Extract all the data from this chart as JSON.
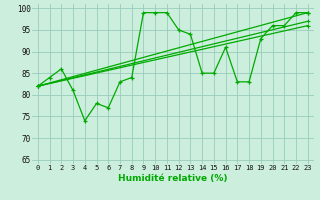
{
  "xlabel": "Humidité relative (%)",
  "bg_color": "#cceedd",
  "grid_color": "#99ccbb",
  "line_color": "#00aa00",
  "xlim": [
    -0.5,
    23.5
  ],
  "ylim": [
    64,
    101
  ],
  "yticks": [
    65,
    70,
    75,
    80,
    85,
    90,
    95,
    100
  ],
  "xticks": [
    0,
    1,
    2,
    3,
    4,
    5,
    6,
    7,
    8,
    9,
    10,
    11,
    12,
    13,
    14,
    15,
    16,
    17,
    18,
    19,
    20,
    21,
    22,
    23
  ],
  "series": [
    {
      "x": [
        0,
        1,
        2,
        3,
        4,
        5,
        6,
        7,
        8,
        9,
        10,
        11,
        12,
        13,
        14,
        15,
        16,
        17,
        18,
        19,
        20,
        21,
        22,
        23
      ],
      "y": [
        82,
        84,
        86,
        81,
        74,
        78,
        77,
        83,
        84,
        99,
        99,
        99,
        95,
        94,
        85,
        85,
        91,
        83,
        83,
        93,
        96,
        96,
        99,
        99
      ]
    },
    {
      "x": [
        0,
        23
      ],
      "y": [
        82,
        99
      ]
    },
    {
      "x": [
        0,
        23
      ],
      "y": [
        82,
        97
      ]
    },
    {
      "x": [
        0,
        23
      ],
      "y": [
        82,
        96
      ]
    }
  ]
}
